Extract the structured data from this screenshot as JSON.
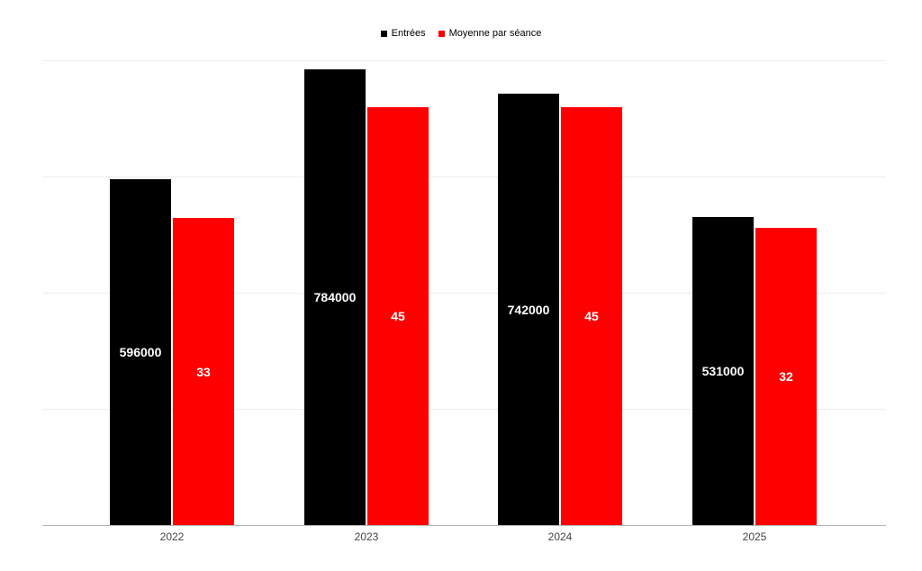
{
  "page": {
    "background": "#ffffff"
  },
  "legend": {
    "items": [
      {
        "label": "Entrées",
        "color": "#000000"
      },
      {
        "label": "Moyenne par séance",
        "color": "#ff0000"
      }
    ]
  },
  "chart_data": {
    "type": "bar",
    "title": "",
    "xlabel": "",
    "ylabel": "",
    "categories": [
      "2022",
      "2023",
      "2024",
      "2025"
    ],
    "series": [
      {
        "key": "entrees",
        "name": "Entrées",
        "color": "#000000",
        "axis": "left",
        "values": [
          596000,
          784000,
          742000,
          531000
        ],
        "labels": [
          "596000",
          "784000",
          "742000",
          "531000"
        ]
      },
      {
        "key": "moyenne-par-seance",
        "name": "Moyenne par séance",
        "color": "#ff0000",
        "axis": "right",
        "values": [
          33,
          45,
          45,
          32
        ],
        "labels": [
          "33",
          "45",
          "45",
          "32"
        ]
      }
    ],
    "left_axis": {
      "min": 0,
      "max": 800000,
      "tick_step": 200000,
      "labels_visible": false
    },
    "right_axis": {
      "min": 0,
      "max": 50,
      "labels_visible": false
    },
    "grid": true,
    "gridline_count": 5,
    "legend_position": "top-center",
    "value_label_color": "#ffffff",
    "value_label_position": "middle"
  }
}
